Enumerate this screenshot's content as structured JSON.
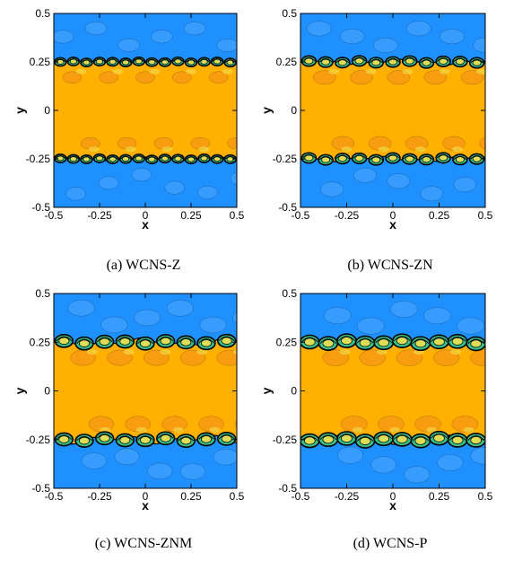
{
  "figure": {
    "panels": [
      {
        "caption": "(a) WCNS-Z",
        "xlabel": "x",
        "ylabel": "y",
        "xticks": [
          "-0.5",
          "-0.25",
          "0",
          "0.25",
          "0.5"
        ],
        "yticks": [
          "0.5",
          "0.25",
          "0",
          "-0.25",
          "-0.5"
        ],
        "roll_amplitude": 0.18,
        "n_rolls": 14,
        "perturbation": 0.25
      },
      {
        "caption": "(b) WCNS-ZN",
        "xlabel": "x",
        "ylabel": "y",
        "xticks": [
          "-0.5",
          "-0.25",
          "0",
          "0.25",
          "0.5"
        ],
        "yticks": [
          "0.5",
          "0.25",
          "0",
          "-0.25",
          "-0.5"
        ],
        "roll_amplitude": 0.3,
        "n_rolls": 11,
        "perturbation": 0.45
      },
      {
        "caption": "(c) WCNS-ZNM",
        "xlabel": "x",
        "ylabel": "y",
        "xticks": [
          "-0.5",
          "-0.25",
          "0",
          "0.25",
          "0.5"
        ],
        "yticks": [
          "0.5",
          "0.25",
          "0",
          "-0.25",
          "-0.5"
        ],
        "roll_amplitude": 0.45,
        "n_rolls": 9,
        "perturbation": 0.6
      },
      {
        "caption": "(d) WCNS-P",
        "xlabel": "x",
        "ylabel": "y",
        "xticks": [
          "-0.5",
          "-0.25",
          "0",
          "0.25",
          "0.5"
        ],
        "yticks": [
          "0.5",
          "0.25",
          "0",
          "-0.25",
          "-0.5"
        ],
        "roll_amplitude": 0.5,
        "n_rolls": 10,
        "perturbation": 0.65
      }
    ],
    "colors": {
      "outer": "#1e90ff",
      "outer_light": "#4aa8ff",
      "inner": "#ffb000",
      "inner_dark": "#f08c1e",
      "shear_green": "#38c08c",
      "shear_yellow": "#f2e052",
      "contour": "#000000"
    }
  }
}
